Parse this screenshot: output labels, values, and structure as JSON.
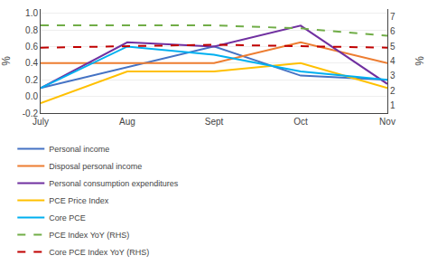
{
  "chart_data": {
    "type": "line",
    "categories": [
      "July",
      "Aug",
      "Sept",
      "Oct",
      "Nov"
    ],
    "series": [
      {
        "name": "Personal income",
        "color": "#4472C4",
        "line_style": "solid",
        "values": [
          0.1,
          null,
          0.6,
          0.25,
          0.2
        ]
      },
      {
        "name": "Disposal personal income",
        "color": "#ED7D31",
        "line_style": "solid",
        "values": [
          0.4,
          0.4,
          0.4,
          0.65,
          0.4
        ]
      },
      {
        "name": "Personal consumption expenditures",
        "color": "#7030A0",
        "line_style": "solid",
        "values": [
          0.1,
          0.65,
          0.6,
          0.85,
          0.15
        ]
      },
      {
        "name": "PCE Price Index",
        "color": "#FFC000",
        "line_style": "solid",
        "values": [
          -0.08,
          0.3,
          0.3,
          0.4,
          0.1
        ]
      },
      {
        "name": "Core PCE",
        "color": "#00B0F0",
        "line_style": "solid",
        "values": [
          0.1,
          0.6,
          0.5,
          0.3,
          0.2
        ]
      },
      {
        "name": "PCE Index YoY (RHS)",
        "color": "#70AD47",
        "line_style": "dashed",
        "axis": "y2",
        "values": [
          6.4,
          6.4,
          6.4,
          6.2,
          5.7
        ]
      },
      {
        "name": "Core PCE Index YoY (RHS)",
        "color": "#C00000",
        "line_style": "dashed",
        "axis": "y2",
        "values": [
          4.9,
          5.0,
          5.1,
          5.0,
          4.9
        ]
      }
    ],
    "ylabel": "%",
    "y2label": "%",
    "ylim": [
      -0.2,
      1.05
    ],
    "yticks": [
      -0.2,
      {
        "value": 0,
        "label": "0.0"
      },
      0.2,
      0.4,
      0.6,
      0.8,
      {
        "value": 1,
        "label": "1.0"
      }
    ],
    "y2lim": [
      0.5,
      7.5
    ],
    "y2ticks": [
      1,
      2,
      3,
      4,
      5,
      6,
      7
    ],
    "grid": true,
    "legend": "bottom"
  }
}
